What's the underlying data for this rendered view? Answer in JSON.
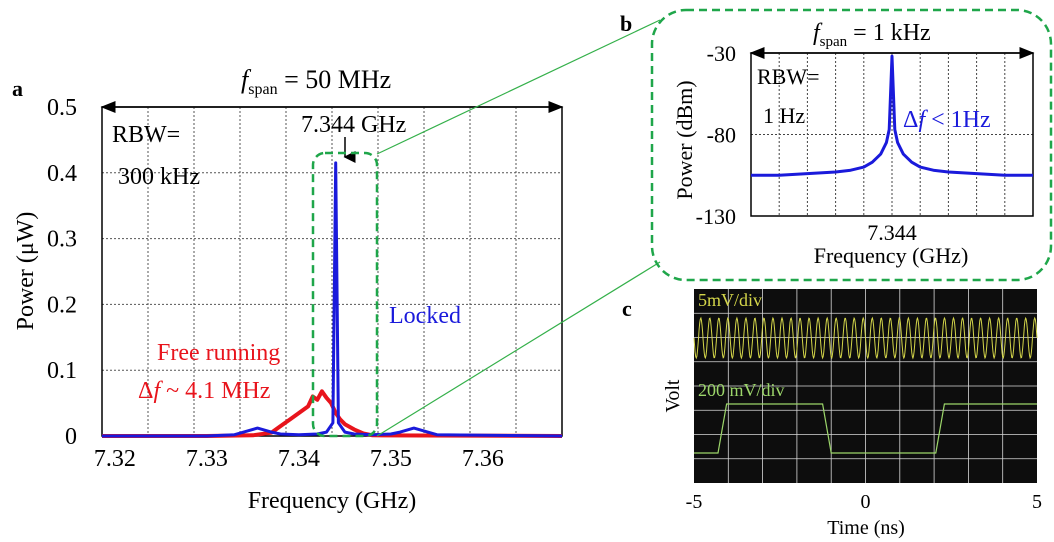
{
  "panel_a": {
    "letter": "a",
    "span_f": "f",
    "span_sub": "span",
    "span_rest": " = 50 MHz",
    "rbw_line1": "RBW=",
    "rbw_line2": "300 kHz",
    "peak_label": "7.344 GHz",
    "locked_label": "Locked",
    "free_label": "Free running",
    "delta_prefix": "Δ",
    "delta_f": "f",
    "delta_rest": " ~ 4.1 MHz"
  },
  "panel_b": {
    "letter": "b",
    "span_f": "f",
    "span_sub": "span",
    "span_rest": " = 1 kHz",
    "rbw_line1": "RBW=",
    "rbw_line2": "1 Hz",
    "delta_prefix": "Δ",
    "delta_f": "f",
    "delta_rest": " < 1Hz"
  },
  "panel_c": {
    "letter": "c",
    "trace1_label": "5mV/div",
    "trace2_label": "200 mV/div"
  },
  "colors": {
    "locked": "#1a1adb",
    "free_running": "#e8141c",
    "zoom_box": "#1fa64a",
    "zoom_lines": "#34b04a",
    "scope_bg": "#0d0d0d",
    "scope_grid": "#d8d8d8",
    "trace_yellow": "#d4d64a",
    "trace_green": "#9cd66a"
  },
  "chart_data": [
    {
      "id": "a",
      "type": "line",
      "xlabel": "Frequency (GHz)",
      "ylabel": "Power (μW)",
      "xlim": [
        7.3186,
        7.3686
      ],
      "ylim": [
        0,
        0.5
      ],
      "xticks": [
        "7.32",
        "7.33",
        "7.34",
        "7.35",
        "7.36"
      ],
      "xtick_values": [
        7.32,
        7.33,
        7.34,
        7.35,
        7.36
      ],
      "yticks": [
        "0",
        "0.1",
        "0.2",
        "0.3",
        "0.4",
        "0.5"
      ],
      "ytick_values": [
        0,
        0.1,
        0.2,
        0.3,
        0.4,
        0.5
      ],
      "grid": true,
      "series": [
        {
          "color_key": "free_running",
          "x": [
            7.3186,
            7.33,
            7.335,
            7.337,
            7.338,
            7.339,
            7.34,
            7.341,
            7.3415,
            7.342,
            7.3425,
            7.343,
            7.3435,
            7.344,
            7.3445,
            7.345,
            7.346,
            7.347,
            7.348,
            7.3686
          ],
          "y": [
            0,
            0,
            0.001,
            0.005,
            0.015,
            0.025,
            0.035,
            0.045,
            0.06,
            0.055,
            0.068,
            0.058,
            0.05,
            0.035,
            0.025,
            0.018,
            0.01,
            0.004,
            0.001,
            0
          ]
        },
        {
          "color_key": "locked",
          "x": [
            7.3186,
            7.33,
            7.333,
            7.334,
            7.3355,
            7.337,
            7.338,
            7.34,
            7.342,
            7.343,
            7.3437,
            7.344,
            7.3443,
            7.345,
            7.346,
            7.348,
            7.35,
            7.351,
            7.3525,
            7.354,
            7.355,
            7.3686
          ],
          "y": [
            0,
            0,
            0.002,
            0.006,
            0.012,
            0.006,
            0.003,
            0.002,
            0.003,
            0.006,
            0.02,
            0.415,
            0.02,
            0.006,
            0.003,
            0.002,
            0.003,
            0.006,
            0.012,
            0.006,
            0.002,
            0
          ]
        }
      ]
    },
    {
      "id": "b",
      "type": "line",
      "xlabel": "Frequency (GHz)",
      "ylabel": "Power (dBm)",
      "ylim": [
        -130,
        -30
      ],
      "xticks": [
        "7.344"
      ],
      "yticks": [
        "-30",
        "-80",
        "-130"
      ],
      "ytick_values": [
        -30,
        -80,
        -130
      ],
      "grid": true,
      "series": [
        {
          "color_key": "locked",
          "x": [
            0,
            0.1,
            0.2,
            0.3,
            0.35,
            0.4,
            0.43,
            0.46,
            0.48,
            0.49,
            0.5,
            0.51,
            0.52,
            0.54,
            0.57,
            0.6,
            0.65,
            0.7,
            0.8,
            0.9,
            1.0
          ],
          "y": [
            -105,
            -105,
            -104,
            -103,
            -102,
            -100,
            -97,
            -92,
            -85,
            -77,
            -32,
            -77,
            -85,
            -92,
            -97,
            -100,
            -102,
            -103,
            -104,
            -105,
            -105
          ]
        }
      ]
    },
    {
      "id": "c",
      "type": "line",
      "xlabel": "Time (ns)",
      "ylabel": "Volt",
      "xlim": [
        -5,
        5
      ],
      "xticks": [
        "-5",
        "0",
        "5"
      ],
      "xtick_values": [
        -5,
        0,
        5
      ],
      "grid": true,
      "series": [
        {
          "name": "5mV/div",
          "color_key": "trace_yellow"
        },
        {
          "name": "200 mV/div",
          "color_key": "trace_green",
          "x": [
            -5,
            -4.3,
            -4.05,
            -3.9,
            -1.25,
            -1.0,
            -0.85,
            2.05,
            2.3,
            2.45,
            5
          ],
          "y": [
            0,
            0,
            1,
            1,
            1,
            0,
            0,
            0,
            1,
            1,
            1
          ]
        }
      ]
    }
  ]
}
